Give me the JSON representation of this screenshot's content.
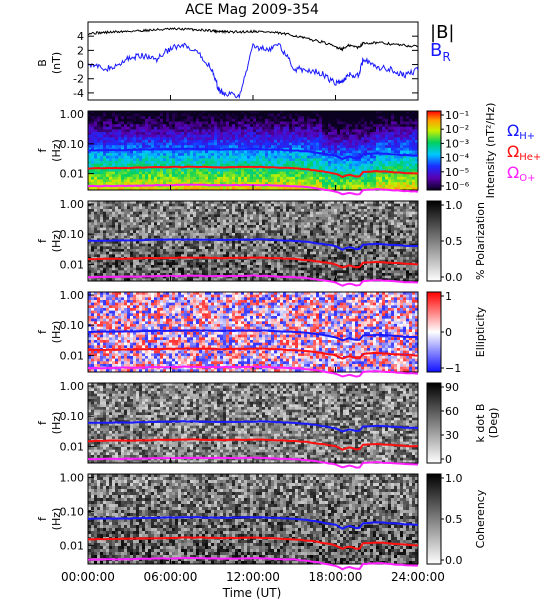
{
  "title": "ACE Mag 2009-354",
  "colors": {
    "H": "#1a1aff",
    "He": "#ff1010",
    "O": "#ff20ff",
    "babs": "#000000",
    "br": "#1a1aff"
  },
  "legend": {
    "babs": "|B|",
    "br_main": "B",
    "br_sub": "R",
    "omega": "Ω",
    "h_sub": "H+",
    "he_sub": "He+",
    "o_sub": "O+"
  },
  "xaxis": {
    "label": "Time (UT)",
    "ticks": [
      "00:00:00",
      "06:00:00",
      "12:00:00",
      "18:00:00",
      "24:00:00"
    ]
  },
  "chart_data": [
    {
      "type": "line",
      "ylabel_main": "B",
      "ylabel_sub": "(nT)",
      "x_hours": [
        0,
        1,
        2,
        3,
        4,
        5,
        6,
        7,
        8,
        9,
        9.5,
        10,
        11,
        12,
        13,
        14,
        15,
        16,
        17,
        18,
        18.5,
        19,
        19.7,
        20,
        21,
        22,
        23,
        24
      ],
      "series": [
        {
          "name": "|B|",
          "values": [
            4.4,
            4.5,
            4.6,
            4.7,
            4.8,
            4.9,
            5.0,
            5.0,
            4.9,
            4.8,
            4.7,
            4.6,
            4.6,
            4.7,
            4.6,
            4.4,
            4.1,
            3.6,
            3.2,
            2.5,
            2.2,
            2.7,
            2.4,
            3.0,
            3.1,
            2.9,
            2.7,
            2.5
          ]
        },
        {
          "name": "B_R",
          "values": [
            0.3,
            -0.6,
            -0.4,
            1.0,
            1.2,
            0.8,
            2.3,
            2.6,
            1.5,
            -0.5,
            -3.6,
            -4.0,
            -4.6,
            2.6,
            2.2,
            2.6,
            -0.6,
            -0.8,
            -1.2,
            -2.7,
            -2.3,
            -1.4,
            -1.6,
            0.8,
            -0.5,
            -0.6,
            -1.5,
            -0.8
          ]
        }
      ],
      "yticks": [
        "4",
        "2",
        "0",
        "-2",
        "-4"
      ],
      "ylim": [
        -5,
        6
      ]
    },
    {
      "type": "heatmap",
      "quantity": "Intensity",
      "ylabel_main": "f",
      "ylabel_sub": "(Hz)",
      "yticks": [
        "1.00",
        "0.10",
        "0.01"
      ],
      "colorbar_label": "Intensity (nT²/Hz)",
      "colorbar_ticks": [
        "10⁻¹",
        "10⁻²",
        "10⁻³",
        "10⁻⁴",
        "10⁻⁵",
        "10⁻⁶"
      ],
      "gyro_lines": [
        {
          "ion": "H+",
          "values": [
            0.06,
            0.061,
            0.062,
            0.062,
            0.064,
            0.065,
            0.066,
            0.067,
            0.067,
            0.066,
            0.065,
            0.065,
            0.066,
            0.067,
            0.066,
            0.063,
            0.06,
            0.055,
            0.048,
            0.04,
            0.031,
            0.037,
            0.03,
            0.045,
            0.048,
            0.045,
            0.042,
            0.04
          ]
        },
        {
          "ion": "He+",
          "values": [
            0.015,
            0.0153,
            0.0155,
            0.0155,
            0.016,
            0.0163,
            0.0165,
            0.0168,
            0.0168,
            0.0165,
            0.0163,
            0.0163,
            0.0165,
            0.0168,
            0.0165,
            0.0158,
            0.015,
            0.0138,
            0.012,
            0.01,
            0.0078,
            0.0093,
            0.0075,
            0.0113,
            0.012,
            0.0113,
            0.0105,
            0.01
          ]
        },
        {
          "ion": "O+",
          "values": [
            0.0038,
            0.0038,
            0.0039,
            0.0039,
            0.004,
            0.0041,
            0.0041,
            0.0042,
            0.0042,
            0.0041,
            0.0041,
            0.0041,
            0.0041,
            0.0042,
            0.0041,
            0.0039,
            0.0038,
            0.0035,
            0.003,
            0.0025,
            0.002,
            0.0023,
            0.0019,
            0.0028,
            0.003,
            0.0028,
            0.0026,
            0.0025
          ]
        }
      ]
    },
    {
      "type": "heatmap",
      "quantity": "% Polarization",
      "ylabel_main": "f",
      "ylabel_sub": "(Hz)",
      "yticks": [
        "1.00",
        "0.10",
        "0.01"
      ],
      "colorbar_label": "% Polarization",
      "colorbar_ticks": [
        "1.0",
        "0.5",
        "0.0"
      ]
    },
    {
      "type": "heatmap",
      "quantity": "Ellipticity",
      "ylabel_main": "f",
      "ylabel_sub": "(Hz)",
      "yticks": [
        "1.00",
        "0.10",
        "0.01"
      ],
      "colorbar_label": "Ellipticity",
      "colorbar_ticks": [
        "1",
        "0",
        "−1"
      ]
    },
    {
      "type": "heatmap",
      "quantity": "k dot B",
      "ylabel_main": "f",
      "ylabel_sub": "(Hz)",
      "yticks": [
        "1.00",
        "0.10",
        "0.01"
      ],
      "colorbar_label": "k dot B",
      "colorbar_unit": "(Deg)",
      "colorbar_ticks": [
        "90",
        "60",
        "30",
        "0"
      ]
    },
    {
      "type": "heatmap",
      "quantity": "Coherency",
      "ylabel_main": "f",
      "ylabel_sub": "(Hz)",
      "yticks": [
        "1.00",
        "0.10",
        "0.01"
      ],
      "colorbar_label": "Coherency",
      "colorbar_ticks": [
        "1.0",
        "0.5",
        "0.0"
      ]
    }
  ]
}
